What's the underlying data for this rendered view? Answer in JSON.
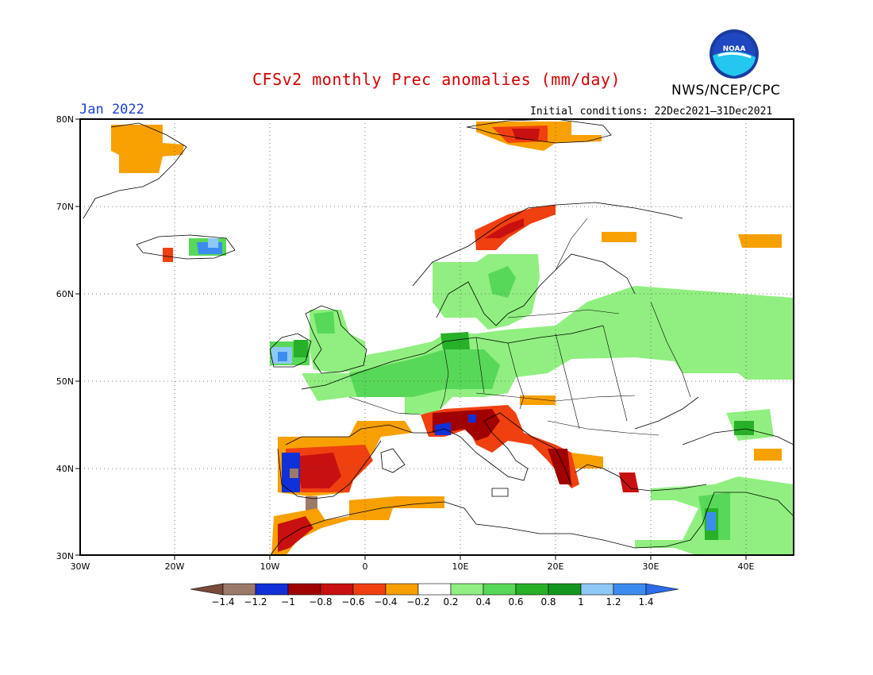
{
  "header": {
    "title": "CFSv2 monthly Prec anomalies (mm/day)",
    "organization": "NWS/NCEP/CPC",
    "month": "Jan 2022",
    "initial_conditions": "Initial conditions: 22Dec2021–31Dec2021",
    "logo_text": "NOAA"
  },
  "map": {
    "lon_range": [
      -30,
      45
    ],
    "lat_range": [
      30,
      80
    ],
    "lon_ticks": [
      "30W",
      "20W",
      "10W",
      "0",
      "10E",
      "20E",
      "30E",
      "40E"
    ],
    "lat_ticks": [
      "30N",
      "40N",
      "50N",
      "60N",
      "70N",
      "80N"
    ],
    "grid": "dotted",
    "region": "Europe"
  },
  "colorbar": {
    "labels": [
      "-1.4",
      "-1.2",
      "-1",
      "-0.8",
      "-0.6",
      "-0.4",
      "-0.2",
      "0.2",
      "0.4",
      "0.6",
      "0.8",
      "1",
      "1.2",
      "1.4"
    ],
    "colors": [
      "#7a4a3a",
      "#9c7a6a",
      "#1030d8",
      "#a00000",
      "#c81010",
      "#f04010",
      "#f7a000",
      "#ffffff",
      "#90ef80",
      "#58d858",
      "#28b028",
      "#14961e",
      "#8ec8f4",
      "#3c8cf0",
      "#2c6ce8"
    ]
  },
  "anomalies": {
    "dry": "#f7a000",
    "dry_mid": "#f04010",
    "dry_strong": "#c81010",
    "dry_very_strong": "#a00000",
    "dry_extreme": "#1030d8",
    "wet_weak": "#90ef80",
    "wet": "#58d858",
    "wet_mid": "#28b028",
    "wet_strong": "#14961e",
    "wet_very_strong": "#8ec8f4",
    "wet_extreme": "#3c8cf0"
  }
}
